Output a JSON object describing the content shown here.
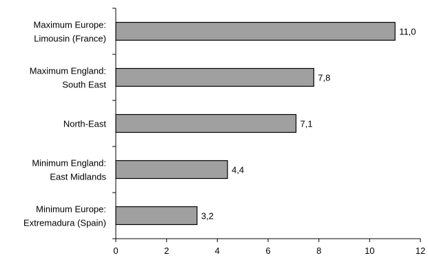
{
  "chart_data": {
    "type": "bar",
    "orientation": "horizontal",
    "categories": [
      [
        "Maximum Europe:",
        "Limousin (France)"
      ],
      [
        "Maximum England:",
        "South East"
      ],
      [
        "North-East"
      ],
      [
        "Minimum England:",
        "East Midlands"
      ],
      [
        "Minimum Europe:",
        "Extremadura (Spain)"
      ]
    ],
    "values": [
      11.0,
      7.8,
      7.1,
      4.4,
      3.2
    ],
    "value_labels": [
      "11,0",
      "7,8",
      "7,1",
      "4,4",
      "3,2"
    ],
    "xlim": [
      0,
      12
    ],
    "xticks": [
      0,
      2,
      4,
      6,
      8,
      10,
      12
    ],
    "xtick_labels": [
      "0",
      "2",
      "4",
      "6",
      "8",
      "10",
      "12"
    ],
    "title": "",
    "xlabel": "",
    "ylabel": "",
    "grid": false,
    "bar_color": "#a0a0a0",
    "edge_color": "#000000"
  }
}
